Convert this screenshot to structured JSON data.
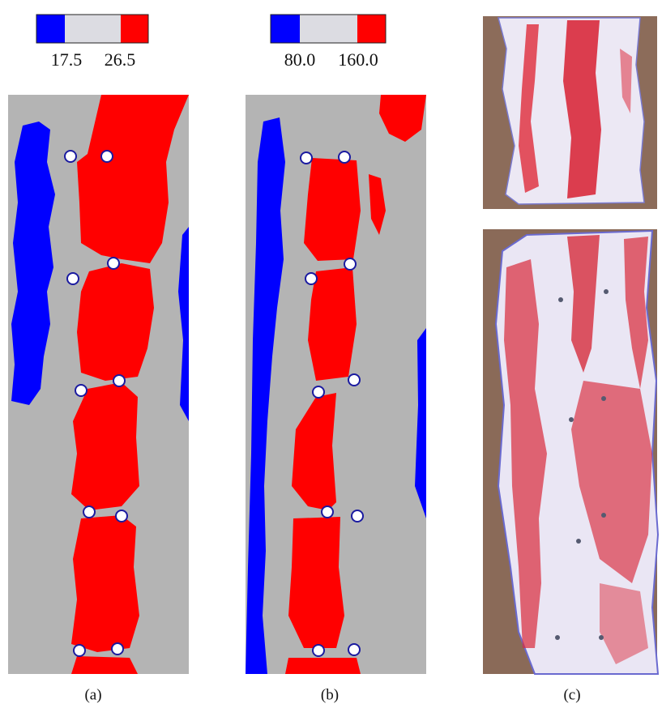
{
  "panels": [
    {
      "label": "(a)",
      "colorbar": {
        "low": "17.5",
        "high": "26.5"
      }
    },
    {
      "label": "(b)",
      "colorbar": {
        "low": "80.0",
        "high": "160.0"
      }
    },
    {
      "label": "(c)"
    }
  ]
}
